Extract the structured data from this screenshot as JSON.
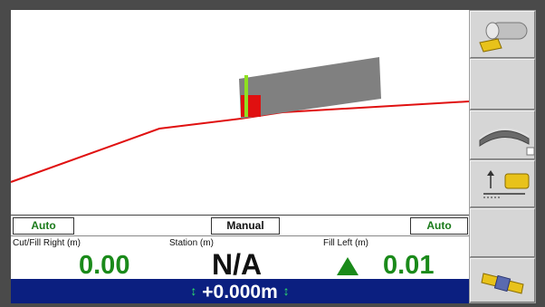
{
  "modes": {
    "left": "Auto",
    "center": "Manual",
    "right": "Auto"
  },
  "readouts": {
    "cut_fill_right_label": "Cut/Fill Right (m)",
    "cut_fill_right_value": "0.00",
    "station_label": "Station (m)",
    "station_value": "N/A",
    "fill_left_label": "Fill Left (m)",
    "fill_left_value": "0.01"
  },
  "status": {
    "offset_value": "+0.000m"
  },
  "colors": {
    "status_bar": "#0b1f80",
    "value_green": "#1a8a1a",
    "profile_line": "#e01010",
    "blade_body": "#808080",
    "blade_marker": "#8ee020",
    "blade_tip": "#e01010"
  },
  "side_buttons": [
    {
      "icon": "blade-roller-icon"
    },
    {
      "icon": "blank"
    },
    {
      "icon": "surface-profile-icon"
    },
    {
      "icon": "elevation-offset-icon"
    },
    {
      "icon": "blank"
    },
    {
      "icon": "satellite-gps-icon"
    }
  ]
}
